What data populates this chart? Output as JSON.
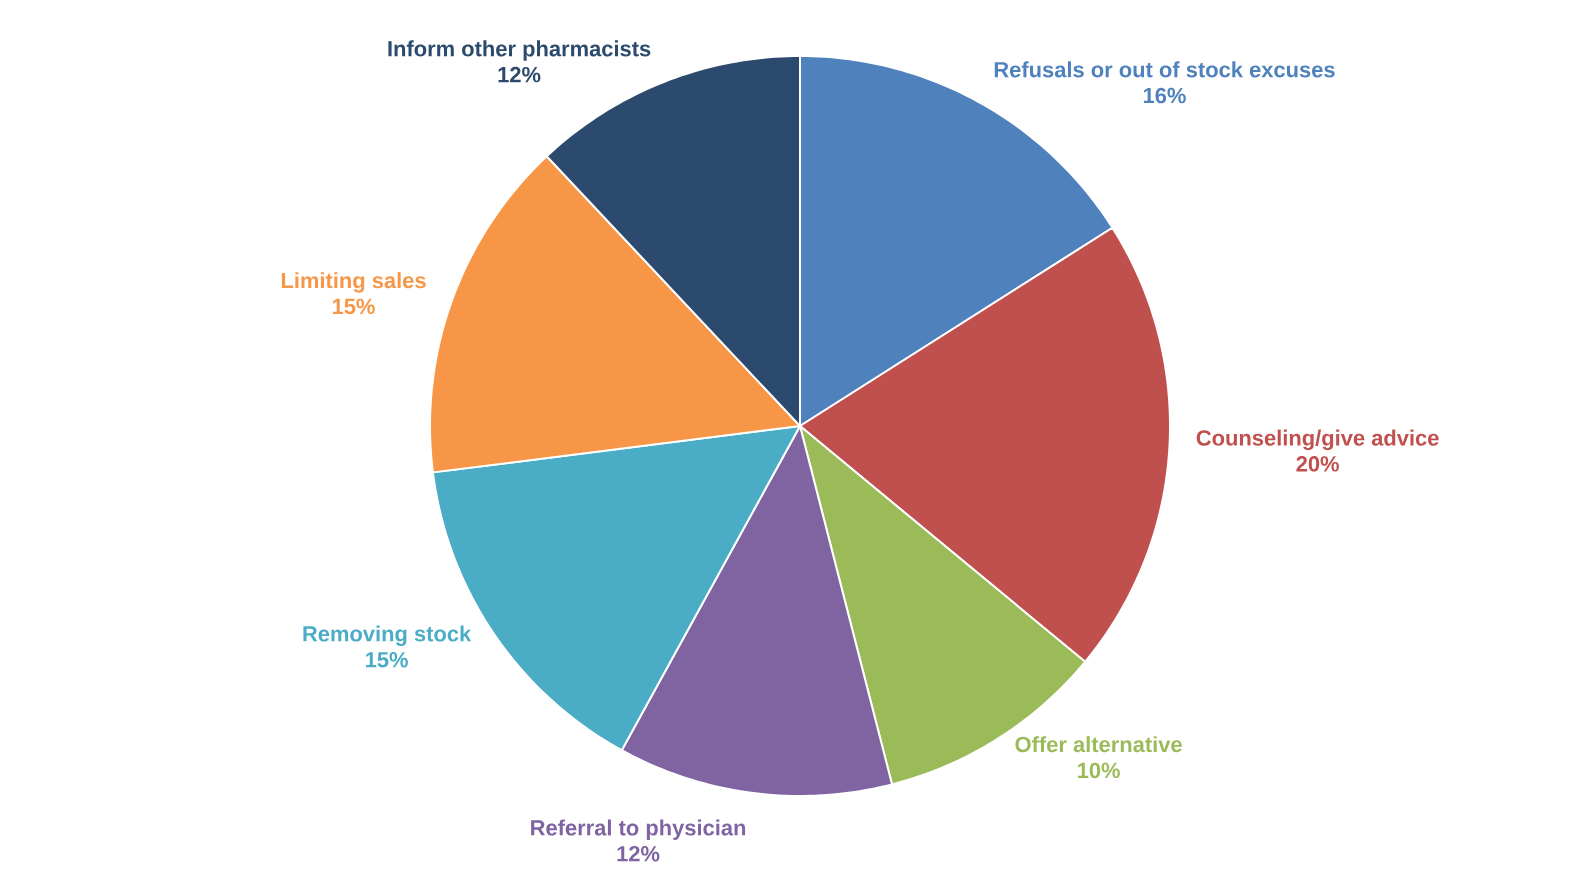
{
  "chart_data": {
    "type": "pie",
    "categories": [
      "Refusals or out of stock excuses",
      "Counseling/give advice",
      "Offer alternative",
      "Referral to physician",
      "Removing stock",
      "Limiting sales",
      "Inform other pharmacists"
    ],
    "values": [
      16,
      20,
      10,
      12,
      15,
      15,
      12
    ],
    "value_labels": [
      "16%",
      "20%",
      "10%",
      "12%",
      "15%",
      "15%",
      "12%"
    ],
    "colors": [
      "#4f81bd",
      "#c0504d",
      "#9bbb59",
      "#8064a2",
      "#4bacc6",
      "#f79646",
      "#2c4a6e"
    ],
    "data_labels": true,
    "legend": false
  }
}
